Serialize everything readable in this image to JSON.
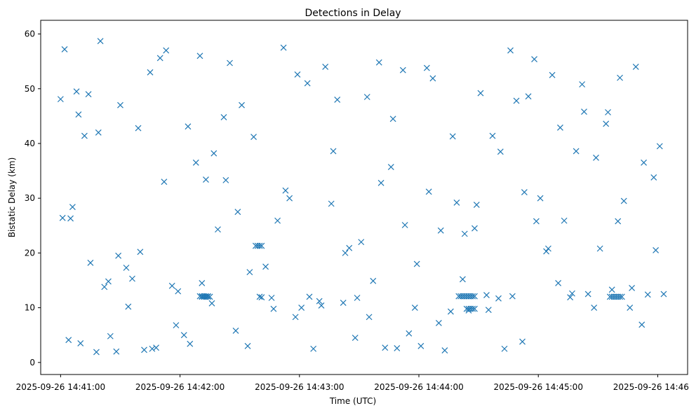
{
  "chart_data": {
    "type": "scatter",
    "title": "Detections in Delay",
    "xlabel": "Time (UTC)",
    "ylabel": "Bistatic Delay (km)",
    "marker": "x",
    "color": "#1f77b4",
    "grid": false,
    "legend": "none",
    "xlim": [
      "2025-09-26 14:40:50",
      "2025-09-26 14:46:15"
    ],
    "ylim": [
      -2.2,
      62.5
    ],
    "x_ticks": [
      "2025-09-26 14:41:00",
      "2025-09-26 14:42:00",
      "2025-09-26 14:43:00",
      "2025-09-26 14:44:00",
      "2025-09-26 14:45:00",
      "2025-09-26 14:46:00"
    ],
    "y_ticks": [
      "0",
      "10",
      "20",
      "30",
      "40",
      "50",
      "60"
    ],
    "series": [
      {
        "x": [
          "2025-09-26 14:41:00",
          "2025-09-26 14:41:02",
          "2025-09-26 14:41:04",
          "2025-09-26 14:41:06",
          "2025-09-26 14:41:08",
          "2025-09-26 14:41:10",
          "2025-09-26 14:41:12",
          "2025-09-26 14:41:15",
          "2025-09-26 14:41:18",
          "2025-09-26 14:41:20",
          "2025-09-26 14:41:22",
          "2025-09-26 14:41:25",
          "2025-09-26 14:41:28",
          "2025-09-26 14:41:30",
          "2025-09-26 14:41:33",
          "2025-09-26 14:41:36",
          "2025-09-26 14:41:39",
          "2025-09-26 14:41:42",
          "2025-09-26 14:41:45",
          "2025-09-26 14:41:48",
          "2025-09-26 14:41:50",
          "2025-09-26 14:41:53",
          "2025-09-26 14:41:56",
          "2025-09-26 14:41:59",
          "2025-09-26 14:42:02",
          "2025-09-26 14:42:05",
          "2025-09-26 14:42:08",
          "2025-09-26 14:42:10",
          "2025-09-26 14:42:13",
          "2025-09-26 14:42:16",
          "2025-09-26 14:42:19",
          "2025-09-26 14:42:22",
          "2025-09-26 14:42:25",
          "2025-09-26 14:42:28",
          "2025-09-26 14:42:31",
          "2025-09-26 14:42:34",
          "2025-09-26 14:42:37",
          "2025-09-26 14:42:40",
          "2025-09-26 14:42:43",
          "2025-09-26 14:42:46",
          "2025-09-26 14:42:49",
          "2025-09-26 14:42:52",
          "2025-09-26 14:42:55",
          "2025-09-26 14:42:58",
          "2025-09-26 14:43:01",
          "2025-09-26 14:43:04",
          "2025-09-26 14:43:07",
          "2025-09-26 14:43:10",
          "2025-09-26 14:43:13",
          "2025-09-26 14:43:16",
          "2025-09-26 14:43:19",
          "2025-09-26 14:43:22",
          "2025-09-26 14:43:25",
          "2025-09-26 14:43:28",
          "2025-09-26 14:43:31",
          "2025-09-26 14:43:34",
          "2025-09-26 14:43:37",
          "2025-09-26 14:43:40",
          "2025-09-26 14:43:43",
          "2025-09-26 14:43:46",
          "2025-09-26 14:43:49",
          "2025-09-26 14:43:52",
          "2025-09-26 14:43:55",
          "2025-09-26 14:43:58",
          "2025-09-26 14:44:01",
          "2025-09-26 14:44:04",
          "2025-09-26 14:44:07",
          "2025-09-26 14:44:10",
          "2025-09-26 14:44:13",
          "2025-09-26 14:44:16",
          "2025-09-26 14:44:19",
          "2025-09-26 14:44:22",
          "2025-09-26 14:44:25",
          "2025-09-26 14:44:28",
          "2025-09-26 14:44:31",
          "2025-09-26 14:44:34",
          "2025-09-26 14:44:37",
          "2025-09-26 14:44:40",
          "2025-09-26 14:44:43",
          "2025-09-26 14:44:46",
          "2025-09-26 14:44:49",
          "2025-09-26 14:44:52",
          "2025-09-26 14:44:55",
          "2025-09-26 14:44:58",
          "2025-09-26 14:45:01",
          "2025-09-26 14:45:04",
          "2025-09-26 14:45:07",
          "2025-09-26 14:45:10",
          "2025-09-26 14:45:13",
          "2025-09-26 14:45:16",
          "2025-09-26 14:45:19",
          "2025-09-26 14:45:22",
          "2025-09-26 14:45:25",
          "2025-09-26 14:45:28",
          "2025-09-26 14:45:31",
          "2025-09-26 14:45:34",
          "2025-09-26 14:45:37",
          "2025-09-26 14:45:40",
          "2025-09-26 14:45:43",
          "2025-09-26 14:45:46",
          "2025-09-26 14:45:49",
          "2025-09-26 14:45:52",
          "2025-09-26 14:45:55",
          "2025-09-26 14:45:58",
          "2025-09-26 14:46:01",
          "2025-09-26 14:46:03",
          "2025-09-26 14:41:01",
          "2025-09-26 14:41:05",
          "2025-09-26 14:41:09",
          "2025-09-26 14:41:14",
          "2025-09-26 14:41:19",
          "2025-09-26 14:41:24",
          "2025-09-26 14:41:29",
          "2025-09-26 14:41:34",
          "2025-09-26 14:41:40",
          "2025-09-26 14:41:46",
          "2025-09-26 14:41:52",
          "2025-09-26 14:41:58",
          "2025-09-26 14:42:04",
          "2025-09-26 14:42:11",
          "2025-09-26 14:42:17",
          "2025-09-26 14:42:23",
          "2025-09-26 14:42:29",
          "2025-09-26 14:42:35",
          "2025-09-26 14:42:41",
          "2025-09-26 14:42:47",
          "2025-09-26 14:42:53",
          "2025-09-26 14:42:59",
          "2025-09-26 14:43:05",
          "2025-09-26 14:43:11",
          "2025-09-26 14:43:17",
          "2025-09-26 14:43:23",
          "2025-09-26 14:43:29",
          "2025-09-26 14:43:35",
          "2025-09-26 14:43:41",
          "2025-09-26 14:43:47",
          "2025-09-26 14:43:53",
          "2025-09-26 14:43:59",
          "2025-09-26 14:44:05",
          "2025-09-26 14:44:11",
          "2025-09-26 14:44:17",
          "2025-09-26 14:44:23",
          "2025-09-26 14:44:29",
          "2025-09-26 14:44:35",
          "2025-09-26 14:44:41",
          "2025-09-26 14:44:47",
          "2025-09-26 14:44:53",
          "2025-09-26 14:44:59",
          "2025-09-26 14:45:05",
          "2025-09-26 14:45:11",
          "2025-09-26 14:45:17",
          "2025-09-26 14:45:23",
          "2025-09-26 14:45:29",
          "2025-09-26 14:45:35",
          "2025-09-26 14:45:41",
          "2025-09-26 14:45:47",
          "2025-09-26 14:45:53",
          "2025-09-26 14:45:59",
          "2025-09-26 14:42:10",
          "2025-09-26 14:42:11",
          "2025-09-26 14:42:12",
          "2025-09-26 14:42:13",
          "2025-09-26 14:42:14",
          "2025-09-26 14:42:11",
          "2025-09-26 14:42:12",
          "2025-09-26 14:42:13",
          "2025-09-26 14:42:14",
          "2025-09-26 14:42:15",
          "2025-09-26 14:42:38",
          "2025-09-26 14:42:39",
          "2025-09-26 14:42:40",
          "2025-09-26 14:42:41",
          "2025-09-26 14:44:20",
          "2025-09-26 14:44:21",
          "2025-09-26 14:44:22",
          "2025-09-26 14:44:23",
          "2025-09-26 14:44:24",
          "2025-09-26 14:44:25",
          "2025-09-26 14:44:26",
          "2025-09-26 14:44:27",
          "2025-09-26 14:44:28",
          "2025-09-26 14:44:24",
          "2025-09-26 14:44:25",
          "2025-09-26 14:44:26",
          "2025-09-26 14:44:27",
          "2025-09-26 14:44:28",
          "2025-09-26 14:45:36",
          "2025-09-26 14:45:37",
          "2025-09-26 14:45:38",
          "2025-09-26 14:45:39",
          "2025-09-26 14:45:40",
          "2025-09-26 14:45:41",
          "2025-09-26 14:45:42"
        ],
        "y": [
          48.1,
          57.2,
          4.1,
          28.4,
          49.5,
          3.5,
          41.4,
          18.2,
          1.9,
          58.7,
          13.8,
          4.8,
          2.0,
          47.0,
          17.3,
          15.3,
          42.8,
          2.3,
          53.0,
          2.7,
          55.6,
          57.0,
          14.0,
          13.0,
          5.0,
          3.4,
          36.5,
          56.0,
          33.4,
          10.8,
          24.3,
          44.8,
          54.7,
          5.8,
          47.0,
          3.0,
          41.2,
          12.0,
          17.5,
          11.8,
          25.9,
          57.5,
          30.0,
          8.3,
          10.0,
          51.0,
          2.5,
          11.2,
          54.0,
          29.0,
          48.0,
          10.9,
          20.9,
          4.5,
          22.0,
          48.5,
          14.9,
          54.8,
          2.7,
          35.7,
          2.6,
          53.4,
          5.3,
          10.0,
          3.0,
          53.8,
          51.9,
          7.2,
          2.2,
          9.3,
          29.2,
          15.2,
          9.5,
          24.5,
          49.2,
          12.3,
          41.4,
          11.7,
          2.5,
          57.0,
          47.8,
          3.8,
          48.6,
          55.4,
          30.0,
          20.3,
          52.5,
          14.5,
          25.9,
          11.9,
          38.6,
          50.8,
          12.5,
          10.0,
          20.8,
          43.6,
          13.3,
          25.8,
          29.5,
          10.0,
          54.0,
          6.9,
          12.4,
          33.8,
          39.5,
          12.5,
          26.4,
          26.3,
          45.3,
          49.0,
          42.0,
          14.8,
          19.5,
          10.2,
          20.2,
          2.5,
          33.0,
          6.8,
          43.1,
          14.5,
          38.2,
          33.3,
          27.5,
          16.5,
          11.9,
          9.8,
          31.4,
          52.6,
          12.0,
          10.4,
          38.6,
          20.0,
          11.8,
          8.3,
          32.8,
          44.5,
          25.1,
          18.0,
          31.2,
          24.1,
          41.3,
          23.5,
          28.8,
          9.6,
          38.5,
          12.1,
          31.1,
          25.8,
          20.8,
          42.9,
          12.6,
          45.8,
          37.4,
          45.7,
          52.0,
          13.6,
          36.5,
          20.5,
          12.1,
          12.1,
          12.1,
          12.1,
          12.1,
          12.0,
          12.0,
          12.0,
          12.0,
          12.0,
          21.3,
          21.3,
          21.3,
          21.3,
          12.1,
          12.1,
          12.1,
          12.1,
          12.1,
          12.1,
          12.1,
          12.1,
          12.1,
          9.8,
          9.8,
          9.8,
          9.8,
          9.8,
          12.0,
          12.0,
          12.0,
          12.0,
          12.0,
          12.0,
          12.0
        ]
      }
    ]
  }
}
